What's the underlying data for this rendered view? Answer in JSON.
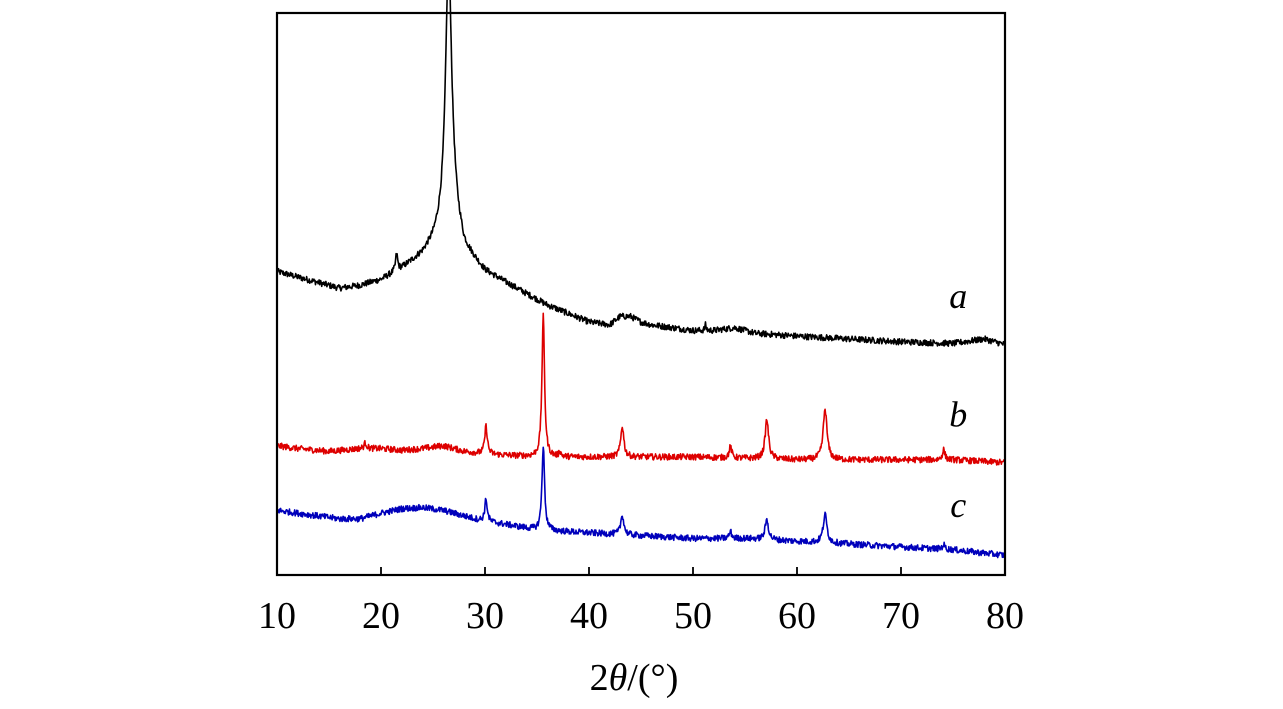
{
  "chart_data": {
    "type": "line",
    "xlabel": "2θ/(°)",
    "xlabel_parts": {
      "prefix": "2",
      "theta": "θ",
      "suffix": "/(°)"
    },
    "ylabel": "",
    "xlim": [
      10,
      80
    ],
    "ylim": [
      0,
      100
    ],
    "x_ticks": [
      "10",
      "20",
      "30",
      "40",
      "50",
      "60",
      "70",
      "80"
    ],
    "y_ticks": [],
    "grid": false,
    "series": [
      {
        "label": "a",
        "color": "#000000",
        "baseline": [
          [
            10,
            54
          ],
          [
            12,
            53
          ],
          [
            14,
            52
          ],
          [
            16,
            51
          ],
          [
            18,
            51.5
          ],
          [
            20,
            52.5
          ],
          [
            22,
            54.5
          ],
          [
            24,
            57
          ],
          [
            25,
            59
          ],
          [
            26,
            62
          ],
          [
            27,
            64
          ],
          [
            28,
            58
          ],
          [
            30,
            54
          ],
          [
            32,
            52
          ],
          [
            34,
            50
          ],
          [
            36,
            48
          ],
          [
            38,
            46.5
          ],
          [
            40,
            45
          ],
          [
            42,
            44.5
          ],
          [
            43,
            46
          ],
          [
            44,
            46
          ],
          [
            45,
            45
          ],
          [
            46,
            44.5
          ],
          [
            48,
            44
          ],
          [
            50,
            43.5
          ],
          [
            52,
            43.5
          ],
          [
            54,
            44
          ],
          [
            55,
            43.5
          ],
          [
            56,
            43
          ],
          [
            60,
            42.5
          ],
          [
            65,
            42
          ],
          [
            70,
            41.5
          ],
          [
            75,
            41.2
          ],
          [
            78,
            42
          ],
          [
            80,
            41
          ]
        ],
        "peaks": [
          [
            26.5,
            47,
            0.35
          ],
          [
            21.5,
            3,
            0.12
          ],
          [
            51.2,
            1,
            0.08
          ]
        ]
      },
      {
        "label": "b",
        "color": "#dd0000",
        "baseline": [
          [
            10,
            23
          ],
          [
            12,
            22.5
          ],
          [
            15,
            22
          ],
          [
            18,
            22.5
          ],
          [
            20,
            22.5
          ],
          [
            22,
            22.2
          ],
          [
            24,
            22.5
          ],
          [
            26,
            23
          ],
          [
            27,
            22.5
          ],
          [
            28,
            22
          ],
          [
            30,
            21.5
          ],
          [
            35,
            21
          ],
          [
            40,
            21
          ],
          [
            50,
            21
          ],
          [
            60,
            20.5
          ],
          [
            70,
            20.5
          ],
          [
            75,
            20.5
          ],
          [
            80,
            20
          ]
        ],
        "peaks": [
          [
            35.6,
            25,
            0.15
          ],
          [
            30.1,
            5,
            0.15
          ],
          [
            43.2,
            5.5,
            0.18
          ],
          [
            53.6,
            2,
            0.15
          ],
          [
            57.1,
            7,
            0.2
          ],
          [
            62.7,
            9,
            0.22
          ],
          [
            74.1,
            1.8,
            0.15
          ],
          [
            18.5,
            1,
            0.15
          ],
          [
            37.2,
            1,
            0.1
          ]
        ]
      },
      {
        "label": "c",
        "color": "#0000bb",
        "baseline": [
          [
            10,
            11.5
          ],
          [
            12,
            11
          ],
          [
            14,
            10.5
          ],
          [
            16,
            10
          ],
          [
            18,
            10
          ],
          [
            20,
            11
          ],
          [
            22,
            11.8
          ],
          [
            24,
            12
          ],
          [
            26,
            11.5
          ],
          [
            28,
            10.5
          ],
          [
            30,
            9.5
          ],
          [
            32,
            9
          ],
          [
            35,
            8
          ],
          [
            40,
            7.5
          ],
          [
            45,
            7
          ],
          [
            50,
            6.5
          ],
          [
            55,
            6.5
          ],
          [
            60,
            6
          ],
          [
            65,
            5.5
          ],
          [
            70,
            5
          ],
          [
            75,
            4.5
          ],
          [
            80,
            3.5
          ]
        ],
        "peaks": [
          [
            35.6,
            15,
            0.15
          ],
          [
            30.1,
            4,
            0.15
          ],
          [
            43.2,
            3.5,
            0.18
          ],
          [
            53.6,
            1.2,
            0.15
          ],
          [
            57.1,
            3.5,
            0.2
          ],
          [
            62.7,
            5,
            0.22
          ],
          [
            74.1,
            0.8,
            0.15
          ]
        ]
      }
    ]
  }
}
